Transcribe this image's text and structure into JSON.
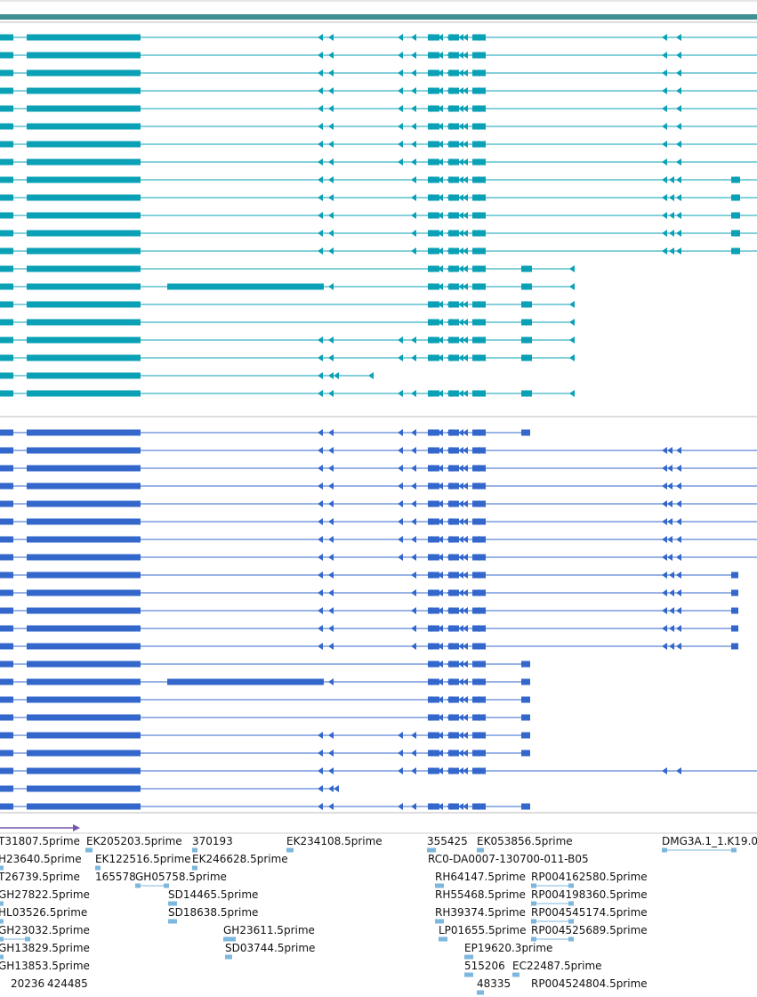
{
  "colors": {
    "top_band": "#3f9090",
    "group1": "#0aa0b6",
    "group2": "#3367cc",
    "est": "#7db7dd",
    "scale_arrow": "#7755aa",
    "separator": "#bbbbbb"
  },
  "group1_tracks": [
    {
      "pattern": "A"
    },
    {
      "pattern": "A"
    },
    {
      "pattern": "A"
    },
    {
      "pattern": "A"
    },
    {
      "pattern": "A"
    },
    {
      "pattern": "A"
    },
    {
      "pattern": "A"
    },
    {
      "pattern": "A"
    },
    {
      "pattern": "B"
    },
    {
      "pattern": "B"
    },
    {
      "pattern": "B"
    },
    {
      "pattern": "B"
    },
    {
      "pattern": "B"
    },
    {
      "pattern": "C"
    },
    {
      "pattern": "D"
    },
    {
      "pattern": "C"
    },
    {
      "pattern": "C"
    },
    {
      "pattern": "E"
    },
    {
      "pattern": "E"
    },
    {
      "pattern": "F"
    },
    {
      "pattern": "E"
    }
  ],
  "group2_tracks": [
    {
      "pattern": "G"
    },
    {
      "pattern": "A2"
    },
    {
      "pattern": "A2"
    },
    {
      "pattern": "A2"
    },
    {
      "pattern": "A2"
    },
    {
      "pattern": "A2"
    },
    {
      "pattern": "A2"
    },
    {
      "pattern": "A2"
    },
    {
      "pattern": "B2"
    },
    {
      "pattern": "B2"
    },
    {
      "pattern": "B2"
    },
    {
      "pattern": "B2"
    },
    {
      "pattern": "B2"
    },
    {
      "pattern": "C2"
    },
    {
      "pattern": "D2"
    },
    {
      "pattern": "C2"
    },
    {
      "pattern": "C2"
    },
    {
      "pattern": "E2"
    },
    {
      "pattern": "E2"
    },
    {
      "pattern": "H2"
    },
    {
      "pattern": "F2"
    },
    {
      "pattern": "E2"
    }
  ],
  "est_labels": [
    {
      "text": "T31807.5prime"
    },
    {
      "text": "EK205203.5prime"
    },
    {
      "text": "370193"
    },
    {
      "text": "EK234108.5prime"
    },
    {
      "text": "355425"
    },
    {
      "text": "EK053856.5prime"
    },
    {
      "text": "DMG3A.1_1.K19.0"
    },
    {
      "text": "H23640.5prime"
    },
    {
      "text": "EK122516.5prime"
    },
    {
      "text": "EK246628.5prime"
    },
    {
      "text": "RC0-DA0007-130700-011-B05"
    },
    {
      "text": "T26739.5prime"
    },
    {
      "text": "165578"
    },
    {
      "text": "GH05758.5prime"
    },
    {
      "text": "RH64147.5prime"
    },
    {
      "text": "RP004162580.5prime"
    },
    {
      "text": "GH27822.5prime"
    },
    {
      "text": "SD14465.5prime"
    },
    {
      "text": "RH55468.5prime"
    },
    {
      "text": "RP004198360.5prime"
    },
    {
      "text": "HL03526.5prime"
    },
    {
      "text": "SD18638.5prime"
    },
    {
      "text": "RH39374.5prime"
    },
    {
      "text": "RP004545174.5prime"
    },
    {
      "text": "GH23032.5prime"
    },
    {
      "text": "GH23611.5prime"
    },
    {
      "text": "LP01655.5prime"
    },
    {
      "text": "RP004525689.5prime"
    },
    {
      "text": "GH13829.5prime"
    },
    {
      "text": "SD03744.5prime"
    },
    {
      "text": "EP19620.3prime"
    },
    {
      "text": "GH13853.5prime"
    },
    {
      "text": "515206"
    },
    {
      "text": "EC22487.5prime"
    },
    {
      "text": "20236"
    },
    {
      "text": "424485"
    },
    {
      "text": "48335"
    },
    {
      "text": "RP004524804.5prime"
    }
  ]
}
